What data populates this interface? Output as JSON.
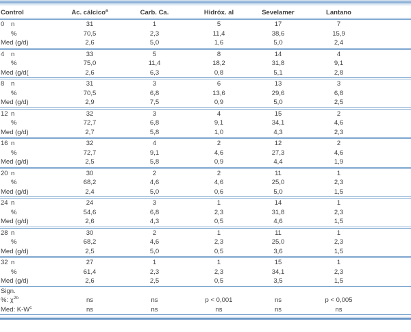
{
  "colors": {
    "rule_blue": "#7da6cf",
    "rule_strong_blue": "#6b97c6",
    "text": "#3d3d3d"
  },
  "table": {
    "columns": [
      {
        "label": "Control",
        "sup": ""
      },
      {
        "label": "Ac. cálcico",
        "sup": "a"
      },
      {
        "label": "Carb. Ca.",
        "sup": ""
      },
      {
        "label": "Hidróx. al",
        "sup": ""
      },
      {
        "label": "Sevelamer",
        "sup": ""
      },
      {
        "label": "Lantano",
        "sup": ""
      }
    ],
    "groups": [
      {
        "control": "0",
        "rows": [
          {
            "label": "n",
            "values": [
              "31",
              "1",
              "5",
              "17",
              "7"
            ]
          },
          {
            "label": "%",
            "values": [
              "70,5",
              "2,3",
              "11,4",
              "38,6",
              "15,9"
            ]
          },
          {
            "label": "Med (g/d)",
            "values": [
              "2,6",
              "5,0",
              "1,6",
              "5,0",
              "2,4"
            ]
          }
        ]
      },
      {
        "control": "4",
        "rows": [
          {
            "label": "n",
            "values": [
              "33",
              "5",
              "8",
              "14",
              "4"
            ]
          },
          {
            "label": "%",
            "values": [
              "75,0",
              "11,4",
              "18,2",
              "31,8",
              "9,1"
            ]
          },
          {
            "label": "Med (g/d(",
            "values": [
              "2,6",
              "6,3",
              "0,8",
              "5,1",
              "2,8"
            ]
          }
        ]
      },
      {
        "control": "8",
        "rows": [
          {
            "label": "n",
            "values": [
              "31",
              "3",
              "6",
              "13",
              "3"
            ]
          },
          {
            "label": "%",
            "values": [
              "70,5",
              "6,8",
              "13,6",
              "29,6",
              "6,8"
            ]
          },
          {
            "label": "Med (g/d)",
            "values": [
              "2,9",
              "7,5",
              "0,9",
              "5,0",
              "2,5"
            ]
          }
        ]
      },
      {
        "control": "12",
        "rows": [
          {
            "label": "n",
            "values": [
              "32",
              "3",
              "4",
              "15",
              "2"
            ]
          },
          {
            "label": "%",
            "values": [
              "72,7",
              "6,8",
              "9,1",
              "34,1",
              "4,6"
            ]
          },
          {
            "label": "Med (g/d)",
            "values": [
              "2,7",
              "5,8",
              "1,0",
              "4,3",
              "2,3"
            ]
          }
        ]
      },
      {
        "control": "16",
        "rows": [
          {
            "label": "n",
            "values": [
              "32",
              "4",
              "2",
              "12",
              "2"
            ]
          },
          {
            "label": "%",
            "values": [
              "72,7",
              "9,1",
              "4,6",
              "27,3",
              "4,6"
            ]
          },
          {
            "label": "Med (g/d)",
            "values": [
              "2,5",
              "5,8",
              "0,9",
              "4,4",
              "1,9"
            ]
          }
        ]
      },
      {
        "control": "20",
        "rows": [
          {
            "label": "n",
            "values": [
              "30",
              "2",
              "2",
              "11",
              "1"
            ]
          },
          {
            "label": "%",
            "values": [
              "68,2",
              "4,6",
              "4,6",
              "25,0",
              "2,3"
            ]
          },
          {
            "label": "Med (g/d)",
            "values": [
              "2,4",
              "5,0",
              "0,6",
              "5,0",
              "1,5"
            ]
          }
        ]
      },
      {
        "control": "24",
        "rows": [
          {
            "label": "n",
            "values": [
              "24",
              "3",
              "1",
              "14",
              "1"
            ]
          },
          {
            "label": "%",
            "values": [
              "54,6",
              "6,8",
              "2,3",
              "31,8",
              "2,3"
            ]
          },
          {
            "label": "Med (g/d)",
            "values": [
              "2,6",
              "4,3",
              "0,5",
              "4,6",
              "1,5"
            ]
          }
        ]
      },
      {
        "control": "28",
        "rows": [
          {
            "label": "n",
            "values": [
              "30",
              "2",
              "1",
              "11",
              "1"
            ]
          },
          {
            "label": "%",
            "values": [
              "68,2",
              "4,6",
              "2,3",
              "25,0",
              "2,3"
            ]
          },
          {
            "label": "Med (g/d)",
            "values": [
              "2,5",
              "5,0",
              "0,5",
              "3,6",
              "1,5"
            ]
          }
        ]
      },
      {
        "control": "32",
        "rows": [
          {
            "label": "n",
            "values": [
              "27",
              "1",
              "1",
              "15",
              "1"
            ]
          },
          {
            "label": "%",
            "values": [
              "61,4",
              "2,3",
              "2,3",
              "34,1",
              "2,3"
            ]
          },
          {
            "label": "Med (g/d)",
            "values": [
              "2,6",
              "2,5",
              "0,5",
              "3,5",
              "1,5"
            ]
          }
        ]
      }
    ],
    "significance": {
      "header": "Sign.",
      "rows": [
        {
          "label": "%: χ",
          "sup": "2b",
          "indent": true,
          "values": [
            "ns",
            "ns",
            "p < 0,001",
            "ns",
            "p < 0,005"
          ]
        },
        {
          "label": "Med: K-W",
          "sup": "c",
          "indent": false,
          "values": [
            "ns",
            "ns",
            "ns",
            "ns",
            "ns"
          ]
        }
      ]
    }
  }
}
